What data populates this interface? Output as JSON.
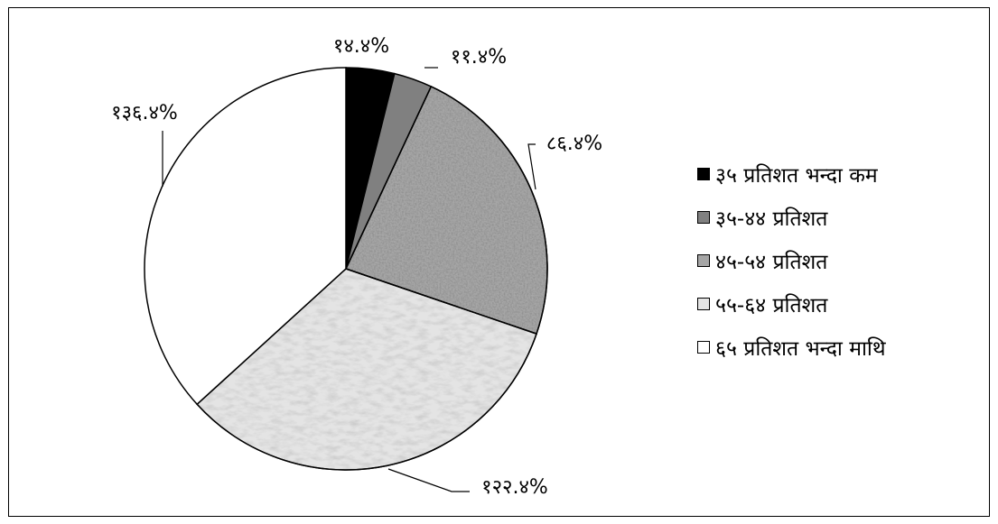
{
  "chart_data": {
    "type": "pie",
    "categories": [
      "३५ प्रतिशत भन्दा कम",
      "३५-४४ प्रतिशत",
      "४५-५४ प्रतिशत",
      "५५-६४ प्रतिशत",
      "६५ प्रतिशत भन्दा माथि"
    ],
    "values": [
      14.4,
      11.4,
      86.4,
      122.4,
      136.4
    ],
    "data_labels": [
      "१४.४%",
      "११.४%",
      "८६.४%",
      "१२२.४%",
      "१३६.४%"
    ],
    "colors": [
      "#000000",
      "#808080",
      "#a6a6a6",
      "#e4e4e4",
      "#ffffff"
    ],
    "legend": "right",
    "title": ""
  }
}
